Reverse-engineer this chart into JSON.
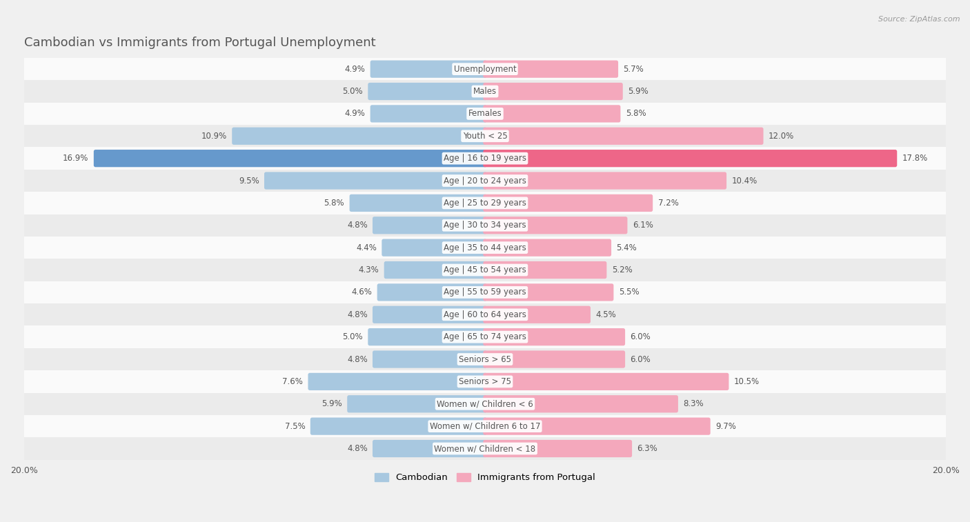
{
  "title": "Cambodian vs Immigrants from Portugal Unemployment",
  "source": "Source: ZipAtlas.com",
  "categories": [
    "Unemployment",
    "Males",
    "Females",
    "Youth < 25",
    "Age | 16 to 19 years",
    "Age | 20 to 24 years",
    "Age | 25 to 29 years",
    "Age | 30 to 34 years",
    "Age | 35 to 44 years",
    "Age | 45 to 54 years",
    "Age | 55 to 59 years",
    "Age | 60 to 64 years",
    "Age | 65 to 74 years",
    "Seniors > 65",
    "Seniors > 75",
    "Women w/ Children < 6",
    "Women w/ Children 6 to 17",
    "Women w/ Children < 18"
  ],
  "cambodian": [
    4.9,
    5.0,
    4.9,
    10.9,
    16.9,
    9.5,
    5.8,
    4.8,
    4.4,
    4.3,
    4.6,
    4.8,
    5.0,
    4.8,
    7.6,
    5.9,
    7.5,
    4.8
  ],
  "portugal": [
    5.7,
    5.9,
    5.8,
    12.0,
    17.8,
    10.4,
    7.2,
    6.1,
    5.4,
    5.2,
    5.5,
    4.5,
    6.0,
    6.0,
    10.5,
    8.3,
    9.7,
    6.3
  ],
  "cambodian_color": "#a8c8e0",
  "portugal_color": "#f4a8bc",
  "highlight_cambodian_color": "#6699cc",
  "highlight_portugal_color": "#ee6688",
  "max_val": 20.0,
  "bar_height": 0.62,
  "bg_color": "#f0f0f0",
  "row_color_light": "#fafafa",
  "row_color_dark": "#ebebeb",
  "legend_cambodian": "Cambodian",
  "legend_portugal": "Immigrants from Portugal",
  "title_color": "#555555",
  "label_color": "#555555",
  "value_color": "#555555"
}
